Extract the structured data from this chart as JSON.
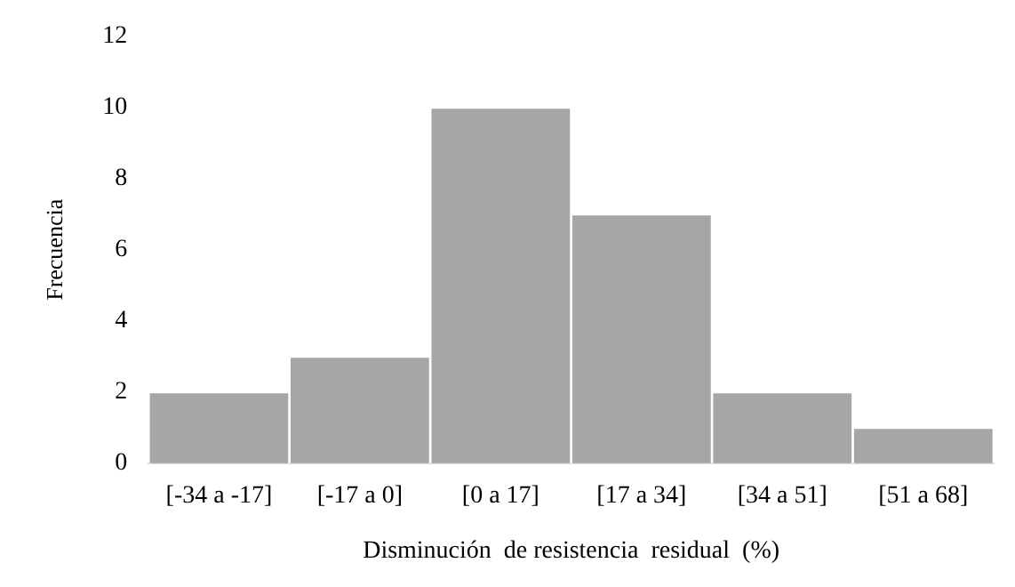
{
  "chart_data": {
    "type": "bar",
    "xlabel": "Disminución  de resistencia  residual  (%)",
    "ylabel": "Frecuencia",
    "categories": [
      "[-34 a -17]",
      "[-17 a 0]",
      "[0 a 17]",
      "[17 a 34]",
      "[34 a 51]",
      "[51 a 68]"
    ],
    "values": [
      2,
      3,
      10,
      7,
      2,
      1
    ],
    "color": "#a6a6a6",
    "ylim": [
      0,
      12
    ],
    "yticks": [
      0,
      2,
      4,
      6,
      8,
      10,
      12
    ],
    "grid": false,
    "legend": false
  }
}
